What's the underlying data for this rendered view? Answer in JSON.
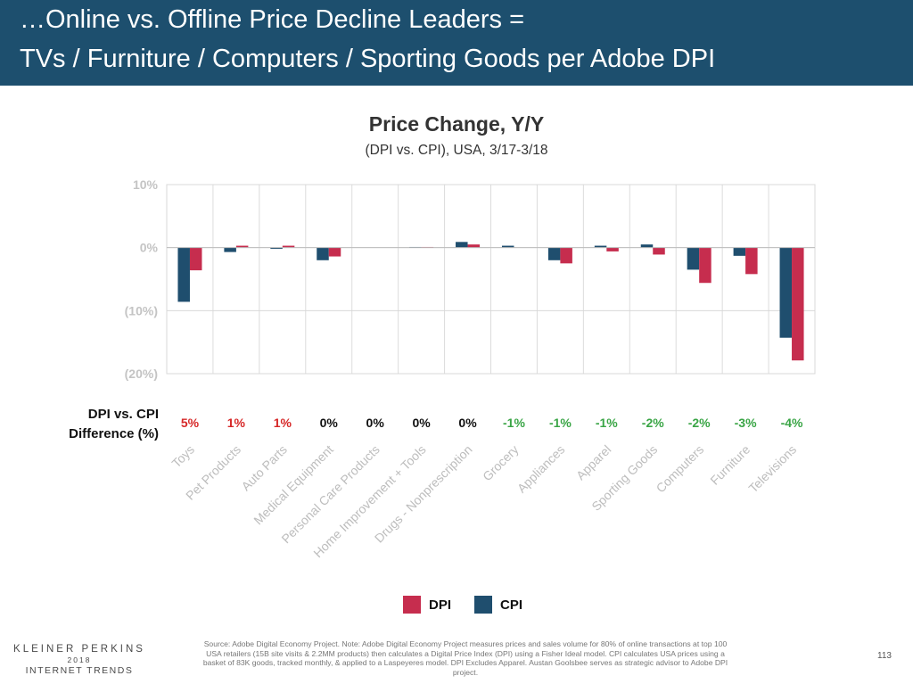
{
  "header": {
    "line1": "…Online vs. Offline Price Decline Leaders =",
    "line2": "TVs / Furniture / Computers / Sporting Goods per Adobe DPI"
  },
  "chart_data": {
    "type": "bar",
    "title": "Price Change, Y/Y",
    "subtitle": "(DPI vs. CPI), USA, 3/17-3/18",
    "categories": [
      "Toys",
      "Pet Products",
      "Auto Parts",
      "Medical Equipment",
      "Personal Care Products",
      "Home Improvement + Tools",
      "Drugs - Nonprescription",
      "Grocery",
      "Appliances",
      "Apparel",
      "Sporting Goods",
      "Computers",
      "Furniture",
      "Televisions"
    ],
    "series": [
      {
        "name": "CPI",
        "color": "#1f4e6e",
        "values": [
          -8.6,
          -0.7,
          -0.2,
          -2.0,
          0.0,
          0.1,
          0.9,
          0.3,
          -2.0,
          0.3,
          0.5,
          -3.5,
          -1.3,
          -14.3
        ]
      },
      {
        "name": "DPI",
        "color": "#c62d4e",
        "values": [
          -3.6,
          0.3,
          0.3,
          -1.4,
          0.0,
          0.1,
          0.5,
          0.0,
          -2.5,
          -0.6,
          -1.1,
          -5.6,
          -4.2,
          -17.9
        ]
      }
    ],
    "ylim": [
      -20,
      10
    ],
    "yticks": [
      10,
      0,
      -10,
      -20
    ],
    "ytick_labels": [
      "10%",
      "0%",
      "(10%)",
      "(20%)"
    ],
    "grid": true,
    "difference": {
      "label_line1": "DPI vs. CPI",
      "label_line2": "Difference (%)",
      "values": [
        "5%",
        "1%",
        "1%",
        "0%",
        "0%",
        "0%",
        "0%",
        "-1%",
        "-1%",
        "-1%",
        "-2%",
        "-2%",
        "-3%",
        "-4%"
      ],
      "colors": [
        "#d62828",
        "#d62828",
        "#d62828",
        "#111111",
        "#111111",
        "#111111",
        "#111111",
        "#3aa546",
        "#3aa546",
        "#3aa546",
        "#3aa546",
        "#3aa546",
        "#3aa546",
        "#3aa546"
      ]
    },
    "legend": [
      "DPI",
      "CPI"
    ],
    "legend_position": "bottom-center"
  },
  "footer": {
    "logo_line1": "KLEINER PERKINS",
    "logo_line2": "2018",
    "logo_line3": "INTERNET TRENDS",
    "source": "Source: Adobe Digital Economy Project. Note: Adobe Digital Economy Project measures prices and sales volume for 80% of online transactions at top 100 USA retailers (15B site visits & 2.2MM products) then calculates a Digital Price Index (DPI) using a Fisher Ideal model. CPI calculates USA prices using a basket of 83K goods, tracked monthly, & applied to a Laspeyeres model. DPI Excludes Apparel. Austan Goolsbee serves as strategic advisor to Adobe DPI project.",
    "page_number": "113"
  }
}
